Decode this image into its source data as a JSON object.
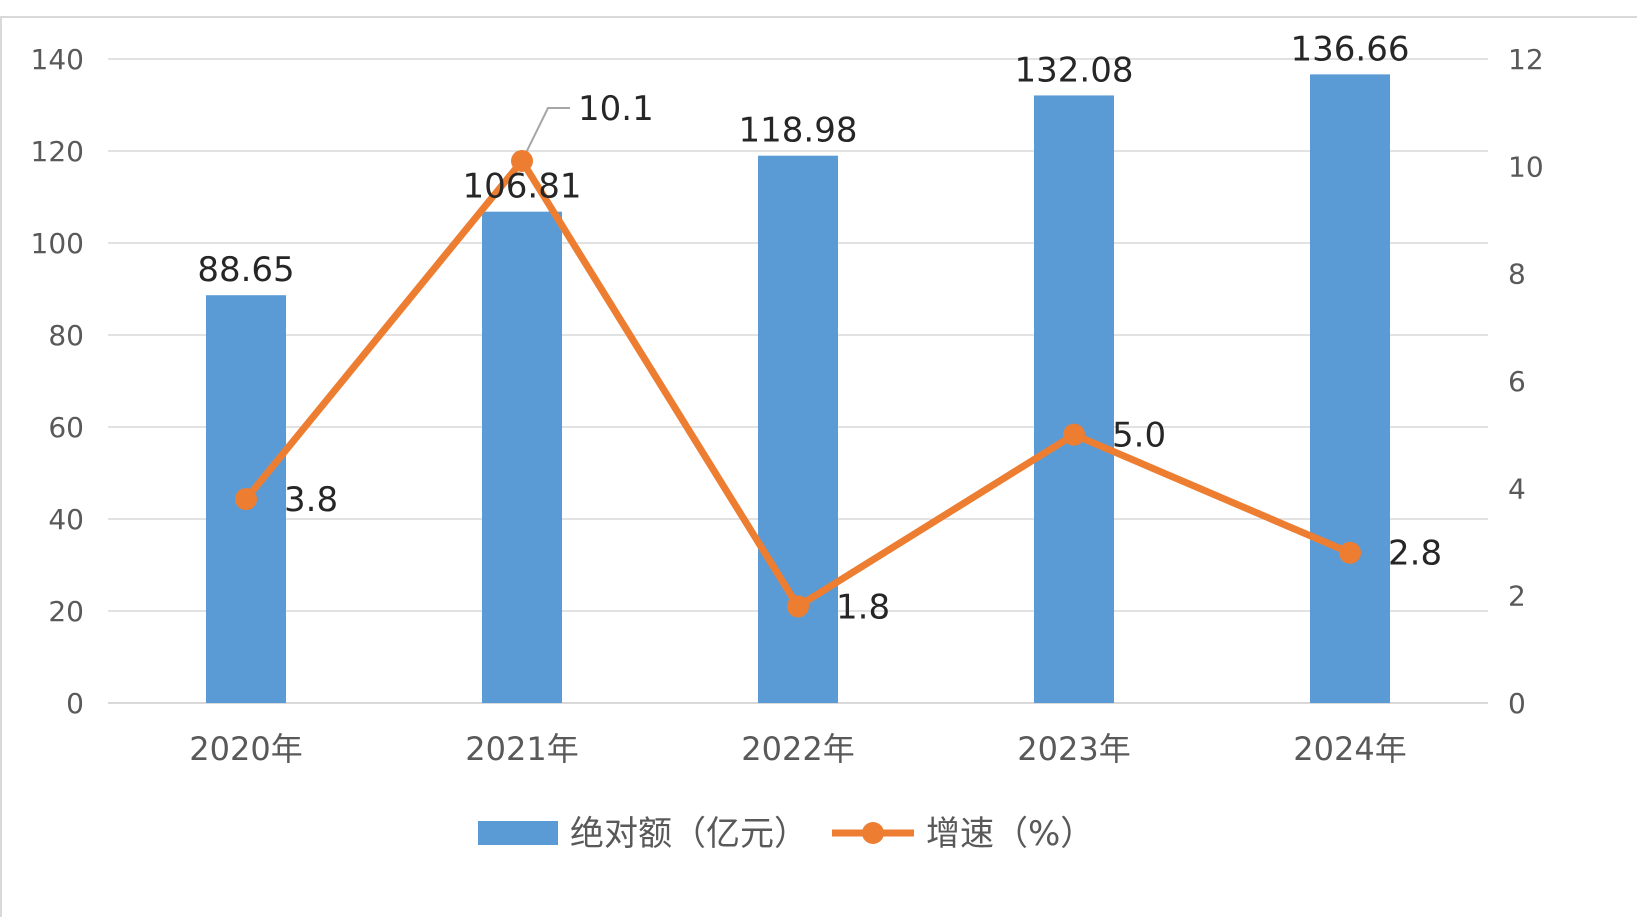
{
  "chart_data": {
    "type": "bar",
    "categories": [
      "2020年",
      "2021年",
      "2022年",
      "2023年",
      "2024年"
    ],
    "series": [
      {
        "name": "绝对额（亿元）",
        "type": "bar",
        "axis": "left",
        "values": [
          88.65,
          106.81,
          118.98,
          132.08,
          136.66
        ],
        "labels": [
          "88.65",
          "106.81",
          "118.98",
          "132.08",
          "136.66"
        ]
      },
      {
        "name": "增速（%）",
        "type": "line",
        "axis": "right",
        "values": [
          3.8,
          10.1,
          1.8,
          5.0,
          2.8
        ],
        "labels": [
          "3.8",
          "10.1",
          "1.8",
          "5.0",
          "2.8"
        ]
      }
    ],
    "y_left": {
      "min": 0,
      "max": 140,
      "ticks": [
        "0",
        "20",
        "40",
        "60",
        "80",
        "100",
        "120",
        "140"
      ]
    },
    "y_right": {
      "min": 0,
      "max": 12,
      "ticks": [
        "0",
        "2",
        "4",
        "6",
        "8",
        "10",
        "12"
      ]
    },
    "grid": true,
    "legend_position": "bottom",
    "colors": {
      "bar": "#5b9bd5",
      "line": "#ed7d31",
      "grid": "#d9d9d9",
      "axis_text": "#595959"
    }
  }
}
